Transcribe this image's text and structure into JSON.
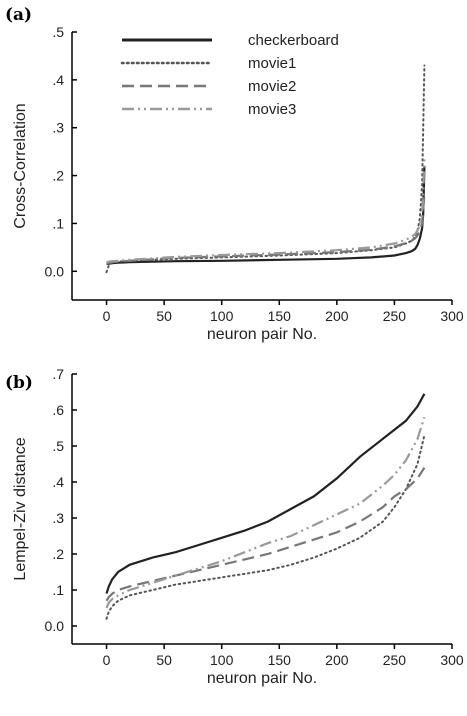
{
  "chart_data": [
    {
      "type": "line",
      "panel_label": "(a)",
      "title": "",
      "xlabel": "neuron pair No.",
      "ylabel": "Cross-Correlation",
      "xlim": [
        -30,
        300
      ],
      "ylim": [
        -0.06,
        0.5
      ],
      "xticks": [
        0,
        50,
        100,
        150,
        200,
        250,
        300
      ],
      "xtick_labels": [
        "0",
        "50",
        "100",
        "150",
        "200",
        "250",
        "300"
      ],
      "yticks": [
        0.0,
        0.1,
        0.2,
        0.3,
        0.4,
        0.5
      ],
      "ytick_labels": [
        "0.0",
        ".1",
        ".2",
        ".3",
        ".4",
        ".5"
      ],
      "grid": false,
      "legend_position": "top-left",
      "series": [
        {
          "name": "checkerboard",
          "style": "solid",
          "color": "#222222",
          "x": [
            0,
            2,
            5,
            10,
            20,
            40,
            60,
            100,
            150,
            200,
            230,
            250,
            260,
            265,
            268,
            270,
            272,
            274,
            275,
            276
          ],
          "y": [
            0.015,
            0.016,
            0.017,
            0.018,
            0.019,
            0.02,
            0.021,
            0.022,
            0.024,
            0.026,
            0.029,
            0.033,
            0.038,
            0.042,
            0.047,
            0.055,
            0.068,
            0.09,
            0.12,
            0.22
          ]
        },
        {
          "name": "movie1",
          "style": "dotted",
          "color": "#555555",
          "x": [
            0,
            2,
            5,
            10,
            20,
            40,
            60,
            100,
            150,
            200,
            230,
            250,
            260,
            265,
            268,
            270,
            272,
            274,
            275,
            276
          ],
          "y": [
            -0.002,
            0.012,
            0.018,
            0.02,
            0.022,
            0.024,
            0.026,
            0.029,
            0.033,
            0.038,
            0.044,
            0.05,
            0.058,
            0.064,
            0.072,
            0.085,
            0.11,
            0.18,
            0.3,
            0.43
          ]
        },
        {
          "name": "movie2",
          "style": "dashed",
          "color": "#777777",
          "x": [
            0,
            2,
            5,
            10,
            20,
            40,
            60,
            100,
            150,
            200,
            230,
            250,
            260,
            265,
            268,
            270,
            272,
            274,
            275,
            276
          ],
          "y": [
            0.016,
            0.018,
            0.019,
            0.02,
            0.022,
            0.025,
            0.028,
            0.031,
            0.035,
            0.04,
            0.045,
            0.052,
            0.059,
            0.064,
            0.069,
            0.075,
            0.085,
            0.1,
            0.13,
            0.16
          ]
        },
        {
          "name": "movie3",
          "style": "dashdotdot",
          "color": "#999999",
          "x": [
            0,
            2,
            5,
            10,
            20,
            40,
            60,
            100,
            150,
            200,
            230,
            250,
            260,
            265,
            268,
            270,
            272,
            274,
            275,
            276
          ],
          "y": [
            0.018,
            0.02,
            0.021,
            0.022,
            0.024,
            0.027,
            0.03,
            0.034,
            0.038,
            0.044,
            0.05,
            0.058,
            0.066,
            0.072,
            0.078,
            0.085,
            0.095,
            0.12,
            0.16,
            0.24
          ]
        }
      ]
    },
    {
      "type": "line",
      "panel_label": "(b)",
      "title": "",
      "xlabel": "neuron pair No.",
      "ylabel": "Lempel-Ziv distance",
      "xlim": [
        -30,
        300
      ],
      "ylim": [
        -0.05,
        0.7
      ],
      "xticks": [
        0,
        50,
        100,
        150,
        200,
        250,
        300
      ],
      "xtick_labels": [
        "0",
        "50",
        "100",
        "150",
        "200",
        "250",
        "300"
      ],
      "yticks": [
        0.0,
        0.1,
        0.2,
        0.3,
        0.4,
        0.5,
        0.6,
        0.7
      ],
      "ytick_labels": [
        "0.0",
        ".1",
        ".2",
        ".3",
        ".4",
        ".5",
        ".6",
        ".7"
      ],
      "grid": false,
      "series": [
        {
          "name": "checkerboard",
          "style": "solid",
          "color": "#222222",
          "x": [
            0,
            2,
            5,
            10,
            20,
            40,
            60,
            80,
            100,
            120,
            140,
            160,
            180,
            200,
            220,
            240,
            260,
            270,
            276
          ],
          "y": [
            0.09,
            0.11,
            0.13,
            0.15,
            0.17,
            0.19,
            0.205,
            0.225,
            0.245,
            0.265,
            0.29,
            0.325,
            0.36,
            0.41,
            0.47,
            0.52,
            0.57,
            0.61,
            0.645
          ]
        },
        {
          "name": "movie1",
          "style": "dotted",
          "color": "#555555",
          "x": [
            0,
            2,
            5,
            10,
            20,
            40,
            60,
            80,
            100,
            120,
            140,
            160,
            180,
            200,
            220,
            240,
            250,
            260,
            270,
            276
          ],
          "y": [
            0.02,
            0.04,
            0.055,
            0.07,
            0.085,
            0.1,
            0.115,
            0.125,
            0.135,
            0.145,
            0.155,
            0.17,
            0.19,
            0.215,
            0.245,
            0.29,
            0.33,
            0.38,
            0.45,
            0.53
          ]
        },
        {
          "name": "movie2",
          "style": "dashed",
          "color": "#777777",
          "x": [
            0,
            2,
            5,
            10,
            20,
            40,
            60,
            80,
            100,
            120,
            140,
            160,
            180,
            200,
            220,
            240,
            250,
            260,
            270,
            276
          ],
          "y": [
            0.07,
            0.08,
            0.09,
            0.1,
            0.11,
            0.125,
            0.14,
            0.155,
            0.17,
            0.185,
            0.2,
            0.22,
            0.24,
            0.26,
            0.29,
            0.33,
            0.36,
            0.38,
            0.41,
            0.44
          ]
        },
        {
          "name": "movie3",
          "style": "dashdotdot",
          "color": "#999999",
          "x": [
            0,
            2,
            5,
            10,
            20,
            40,
            60,
            80,
            100,
            120,
            140,
            160,
            180,
            200,
            220,
            240,
            250,
            260,
            270,
            276
          ],
          "y": [
            0.05,
            0.065,
            0.075,
            0.085,
            0.1,
            0.12,
            0.14,
            0.16,
            0.18,
            0.205,
            0.23,
            0.25,
            0.28,
            0.31,
            0.34,
            0.39,
            0.42,
            0.46,
            0.52,
            0.58
          ]
        }
      ]
    }
  ]
}
